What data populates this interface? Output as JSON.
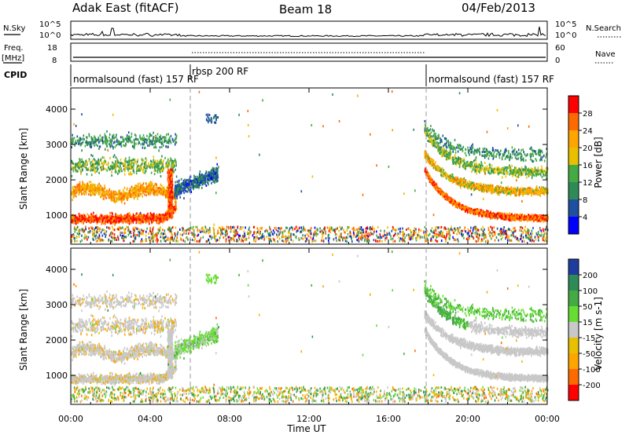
{
  "header": {
    "station": "Adak East (fitACF)",
    "beam": "Beam 18",
    "date": "04/Feb/2013"
  },
  "strip_labels": {
    "nsky": "N.Sky",
    "nsearch": "N.Search",
    "freq": "Freq.",
    "freq_unit": "[MHz]",
    "nave": "Nave",
    "cpid": "CPID",
    "nsky_ticks": [
      "10^5",
      "10^0"
    ],
    "freq_ticks": [
      "18",
      "8"
    ],
    "nave_ticks": [
      "60",
      "0"
    ]
  },
  "cpid_segments": [
    {
      "label": "normalsound (fast) 157 RF",
      "start": 0.0
    },
    {
      "label": "rbsp 200 RF",
      "start": 6.0
    },
    {
      "label": "normalsound (fast) 157 RF",
      "start": 18.0
    }
  ],
  "chart_data": [
    {
      "type": "heatmap",
      "name": "power-panel",
      "ylabel": "Slant Range [km]",
      "xlabel": "",
      "xlim": [
        0,
        24
      ],
      "ylim": [
        180,
        4600
      ],
      "yticks": [
        1000,
        2000,
        3000,
        4000
      ],
      "colorbar": {
        "label": "Power [dB]",
        "ticks": [
          "28",
          "24",
          "20",
          "16",
          "12",
          "8",
          "4"
        ],
        "colors": [
          "#ff0000",
          "#ff6a00",
          "#ffa500",
          "#e8c000",
          "#44aa44",
          "#2e8b57",
          "#1e4fa0",
          "#0000ff"
        ]
      }
    },
    {
      "type": "heatmap",
      "name": "velocity-panel",
      "ylabel": "Slant Range [km]",
      "xlabel": "Time UT",
      "xlim": [
        0,
        24
      ],
      "ylim": [
        180,
        4600
      ],
      "yticks": [
        1000,
        2000,
        3000,
        4000
      ],
      "xtick_labels": [
        "00:00",
        "04:00",
        "08:00",
        "12:00",
        "16:00",
        "20:00",
        "00:00"
      ],
      "colorbar": {
        "label": "Velocity [m s-1]",
        "ticks": [
          "200",
          "100",
          "50",
          "15",
          "-15",
          "-50",
          "-100",
          "-200"
        ],
        "colors": [
          "#1e3ca0",
          "#2e8b57",
          "#44aa44",
          "#66dd33",
          "#c8c8c8",
          "#e8c000",
          "#ffa500",
          "#ff6a00",
          "#ff0000"
        ]
      }
    }
  ]
}
